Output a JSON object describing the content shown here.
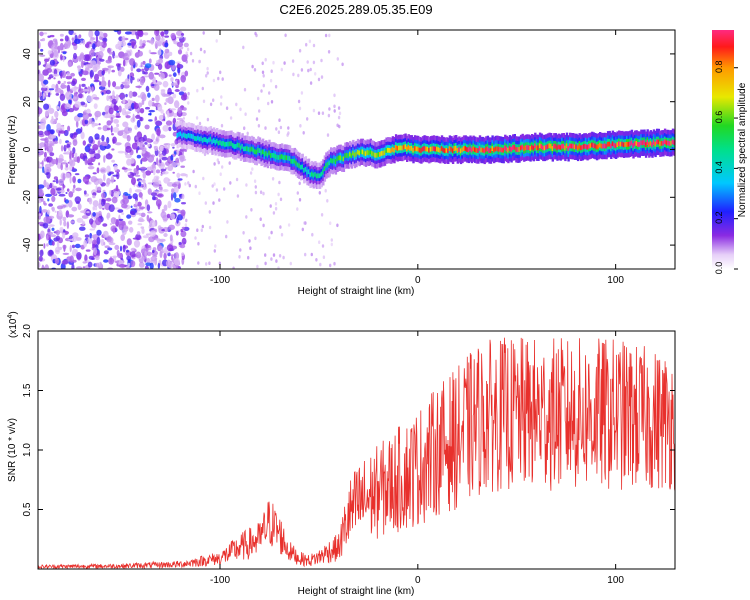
{
  "title": "C2E6.2025.289.05.35.E09",
  "chart_data": [
    {
      "type": "heatmap",
      "name": "spectrogram",
      "xlabel": "Height of straight line (km)",
      "ylabel": "Frequency (Hz)",
      "xlim": [
        -192,
        130
      ],
      "ylim": [
        -50,
        50
      ],
      "xticks": [
        -100,
        0,
        100
      ],
      "yticks": [
        -40,
        -20,
        0,
        20,
        40
      ],
      "colorbar": {
        "label": "Normalized spectral amplitude",
        "range": [
          0,
          0.95
        ],
        "ticks": [
          "0.0",
          "0.2",
          "0.4",
          "0.6",
          "0.8"
        ],
        "tick_values": [
          0,
          0.2,
          0.4,
          0.6,
          0.8
        ]
      },
      "ridge": {
        "x": [
          -120,
          -100,
          -80,
          -65,
          -55,
          -50,
          -45,
          -40,
          -30,
          -20,
          -10,
          0,
          20,
          40,
          60,
          80,
          100,
          130
        ],
        "freq": [
          6,
          3,
          -1,
          -4,
          -10,
          -11,
          -5,
          -4,
          -1,
          -2,
          1,
          0,
          0,
          0,
          1,
          1,
          2,
          3
        ],
        "amplitude": [
          0.35,
          0.45,
          0.5,
          0.5,
          0.45,
          0.45,
          0.5,
          0.55,
          0.6,
          0.65,
          0.75,
          0.8,
          0.85,
          0.9,
          0.9,
          0.9,
          0.9,
          0.9
        ]
      }
    },
    {
      "type": "line",
      "name": "snr",
      "xlabel": "Height of straight line (km)",
      "ylabel": "SNR (10 * v/v)",
      "scale_label": "(x10",
      "scale_exp": "4",
      "scale_close": ")",
      "xlim": [
        -192,
        130
      ],
      "ylim": [
        0,
        20000
      ],
      "xticks": [
        -100,
        0,
        100
      ],
      "yticks": [
        5000,
        10000,
        15000,
        20000
      ],
      "ytick_labels": [
        "0.5",
        "1.0",
        "1.5",
        "2.0"
      ],
      "color": "#e8302c",
      "envelope": {
        "x": [
          -192,
          -150,
          -120,
          -100,
          -90,
          -80,
          -75,
          -70,
          -65,
          -60,
          -55,
          -50,
          -45,
          -40,
          -35,
          -30,
          -20,
          -10,
          0,
          10,
          20,
          30,
          40,
          60,
          80,
          100,
          120,
          130
        ],
        "mean": [
          200,
          250,
          400,
          900,
          1800,
          2500,
          4000,
          3000,
          1500,
          900,
          700,
          1000,
          1500,
          1800,
          4500,
          5500,
          6500,
          7500,
          8500,
          10000,
          11000,
          12500,
          13000,
          13000,
          13000,
          13000,
          12500,
          12500
        ],
        "spread": [
          150,
          200,
          300,
          600,
          1200,
          1500,
          2200,
          1800,
          900,
          600,
          500,
          700,
          1000,
          1200,
          3000,
          3500,
          4000,
          4500,
          5000,
          5500,
          6000,
          6500,
          6500,
          6500,
          6500,
          6500,
          6000,
          6000
        ]
      }
    }
  ]
}
